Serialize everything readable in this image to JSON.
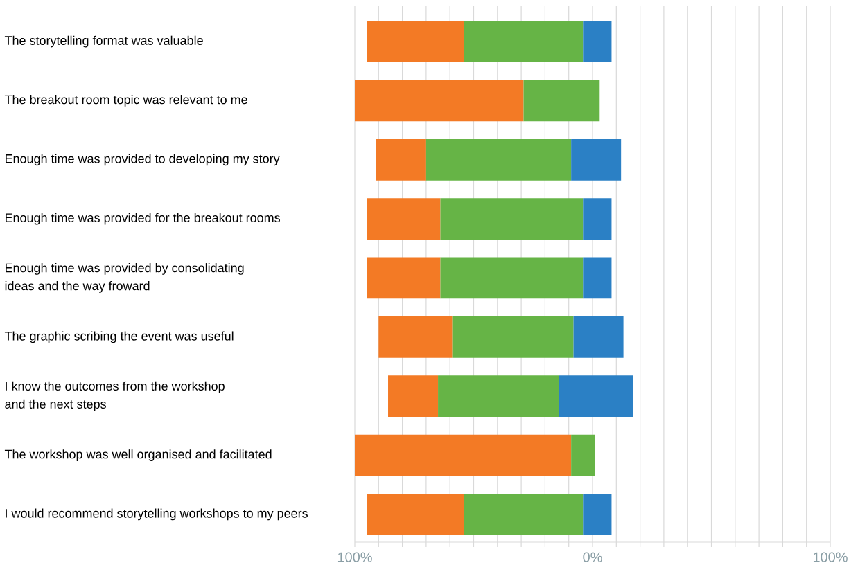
{
  "chart_data": {
    "type": "bar",
    "orientation": "horizontal",
    "categories": [
      "The storytelling format was valuable",
      "The breakout room topic was relevant to me",
      "Enough time was provided to developing my story",
      "Enough time was provided for the breakout rooms",
      "Enough time was provided by consolidating ideas and the way froward",
      "The graphic scribing the event was useful",
      "I know the outcomes from the workshop and the next steps",
      "The workshop was well organised and facilitated",
      "I would recommend storytelling workshops to my peers"
    ],
    "series": [
      {
        "color": "#f37a25",
        "base": [
          -95,
          -100,
          -91,
          -95,
          -95,
          -90,
          -86,
          -100,
          -95
        ],
        "values": [
          41,
          71,
          21,
          31,
          31,
          31,
          21,
          91,
          41
        ]
      },
      {
        "color": "#66b446",
        "base": [
          -54,
          -29,
          -70,
          -64,
          -64,
          -59,
          -65,
          -9,
          -54
        ],
        "values": [
          50,
          32,
          61,
          60,
          60,
          51,
          51,
          10,
          50
        ]
      },
      {
        "color": "#2b80c5",
        "base": [
          -4,
          null,
          -9,
          -4,
          -4,
          -8,
          -14,
          null,
          -4
        ],
        "values": [
          12,
          null,
          21,
          12,
          12,
          21,
          31,
          null,
          12
        ]
      }
    ],
    "xlim": [
      -100,
      100
    ],
    "xticks": [
      {
        "value": -100,
        "label": "100%"
      },
      {
        "value": -90,
        "label": null
      },
      {
        "value": -80,
        "label": null
      },
      {
        "value": -70,
        "label": null
      },
      {
        "value": -60,
        "label": null
      },
      {
        "value": -50,
        "label": null
      },
      {
        "value": -40,
        "label": null
      },
      {
        "value": -30,
        "label": null
      },
      {
        "value": -20,
        "label": null
      },
      {
        "value": -10,
        "label": null
      },
      {
        "value": 0,
        "label": "0%"
      },
      {
        "value": 10,
        "label": null
      },
      {
        "value": 20,
        "label": null
      },
      {
        "value": 30,
        "label": null
      },
      {
        "value": 40,
        "label": null
      },
      {
        "value": 50,
        "label": null
      },
      {
        "value": 60,
        "label": null
      },
      {
        "value": 70,
        "label": null
      },
      {
        "value": 80,
        "label": null
      },
      {
        "value": 90,
        "label": null
      },
      {
        "value": 100,
        "label": "100%"
      }
    ],
    "grid": "x"
  }
}
